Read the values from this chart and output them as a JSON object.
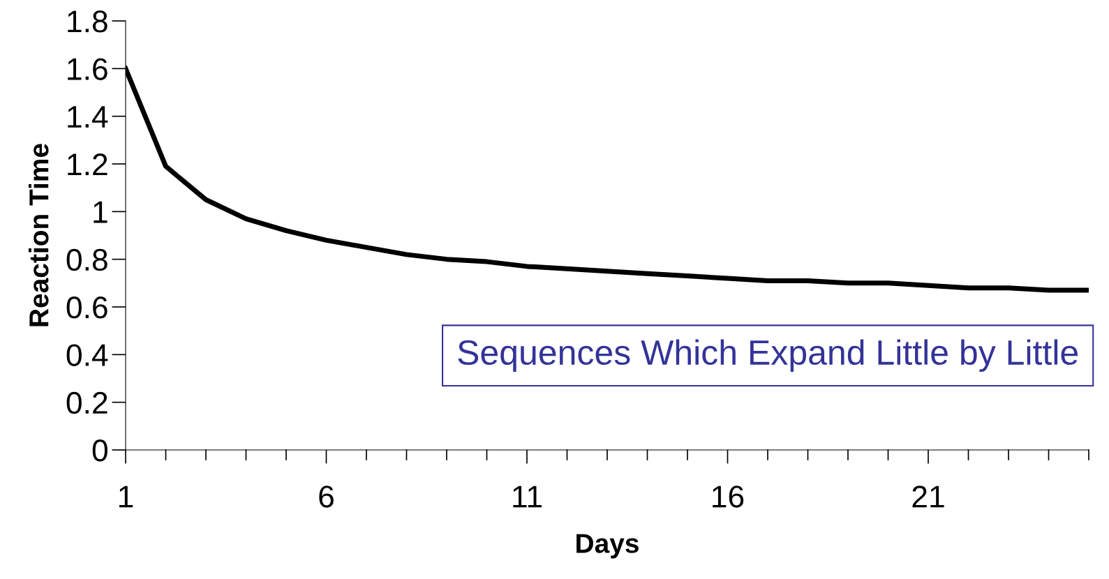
{
  "chart_data": {
    "type": "line",
    "xlabel": "Days",
    "ylabel": "Reaction Time",
    "x": [
      1,
      2,
      3,
      4,
      5,
      6,
      7,
      8,
      9,
      10,
      11,
      12,
      13,
      14,
      15,
      16,
      17,
      18,
      19,
      20,
      21,
      22,
      23,
      24,
      25
    ],
    "series": [
      {
        "color": "#000000",
        "values": [
          1.6,
          1.19,
          1.05,
          0.97,
          0.92,
          0.88,
          0.85,
          0.82,
          0.8,
          0.79,
          0.77,
          0.76,
          0.75,
          0.74,
          0.73,
          0.72,
          0.71,
          0.71,
          0.7,
          0.7,
          0.69,
          0.68,
          0.68,
          0.67,
          0.67
        ]
      }
    ],
    "xlim": [
      1,
      25
    ],
    "xticks": [
      1,
      {
        "value": 2,
        "label": null
      },
      {
        "value": 3,
        "label": null
      },
      {
        "value": 4,
        "label": null
      },
      {
        "value": 5,
        "label": null
      },
      6,
      {
        "value": 7,
        "label": null
      },
      {
        "value": 8,
        "label": null
      },
      {
        "value": 9,
        "label": null
      },
      {
        "value": 10,
        "label": null
      },
      11,
      {
        "value": 12,
        "label": null
      },
      {
        "value": 13,
        "label": null
      },
      {
        "value": 14,
        "label": null
      },
      {
        "value": 15,
        "label": null
      },
      16,
      {
        "value": 17,
        "label": null
      },
      {
        "value": 18,
        "label": null
      },
      {
        "value": 19,
        "label": null
      },
      {
        "value": 20,
        "label": null
      },
      21,
      {
        "value": 22,
        "label": null
      },
      {
        "value": 23,
        "label": null
      },
      {
        "value": 24,
        "label": null
      },
      {
        "value": 25,
        "label": null
      }
    ],
    "ylim": [
      0,
      1.8
    ],
    "yticks": [
      0,
      0.2,
      0.4,
      0.6,
      0.8,
      1,
      1.2,
      1.4,
      1.6,
      1.8
    ],
    "grid": false,
    "legend": false,
    "marker": "none",
    "line_style": "solid",
    "annotations": [
      "Sequences Which Expand Little by Little"
    ]
  }
}
